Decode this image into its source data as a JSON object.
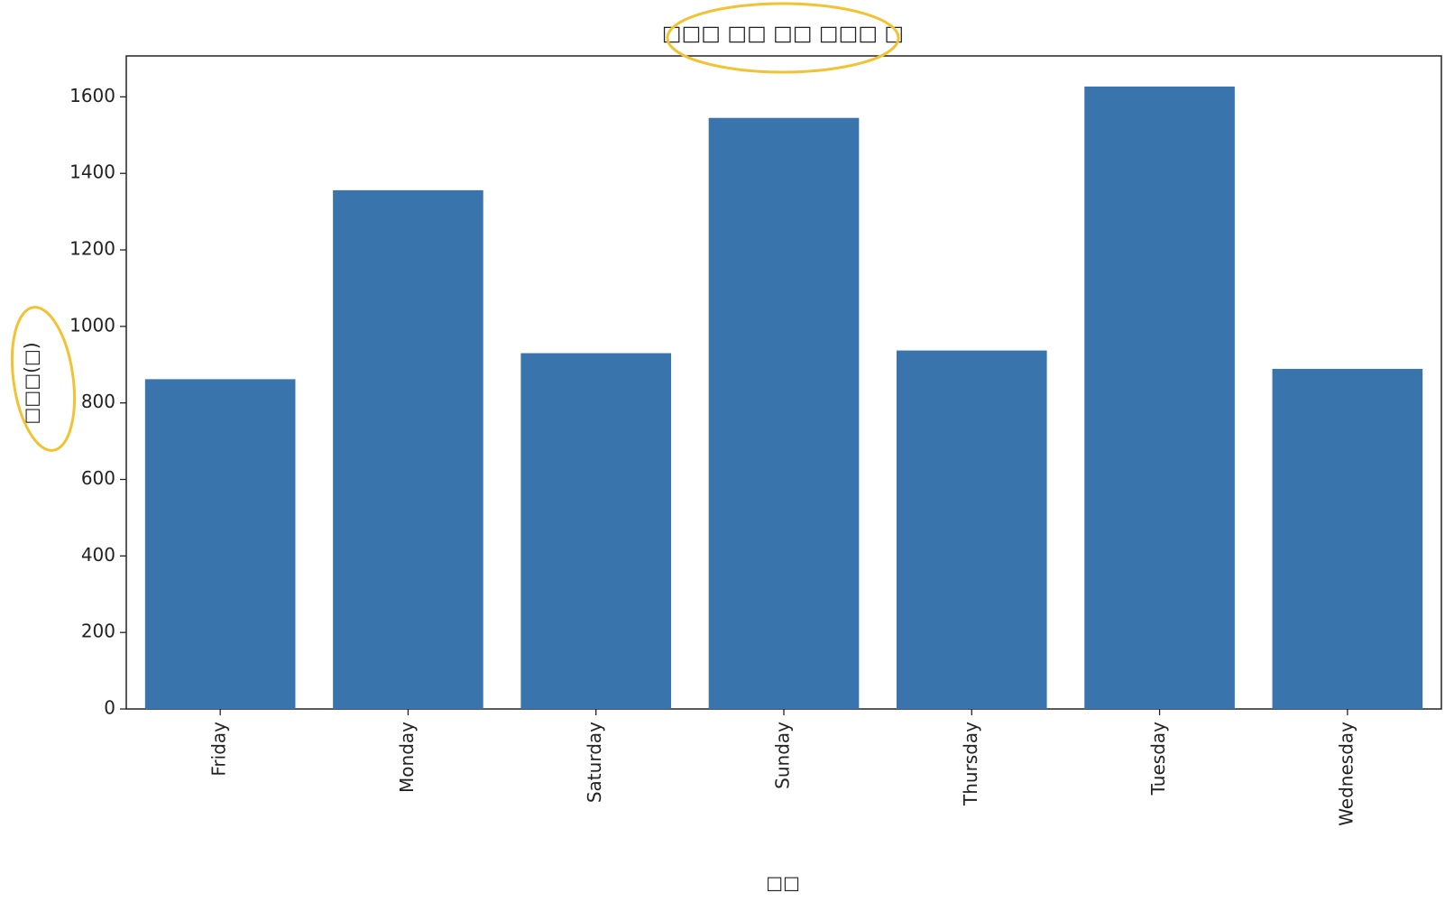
{
  "chart_data": {
    "type": "bar",
    "title": "□□□ □□ □□ □□□ □",
    "x_label": "□□",
    "y_label": "□□□(□)",
    "categories": [
      "Friday",
      "Monday",
      "Saturday",
      "Sunday",
      "Thursday",
      "Tuesday",
      "Wednesday"
    ],
    "values": [
      862,
      1356,
      930,
      1545,
      937,
      1627,
      889
    ],
    "color": "#3a74ad",
    "ylim": [
      0,
      1707
    ],
    "yticks": [
      0,
      200,
      400,
      600,
      800,
      1000,
      1200,
      1400,
      1600
    ]
  }
}
